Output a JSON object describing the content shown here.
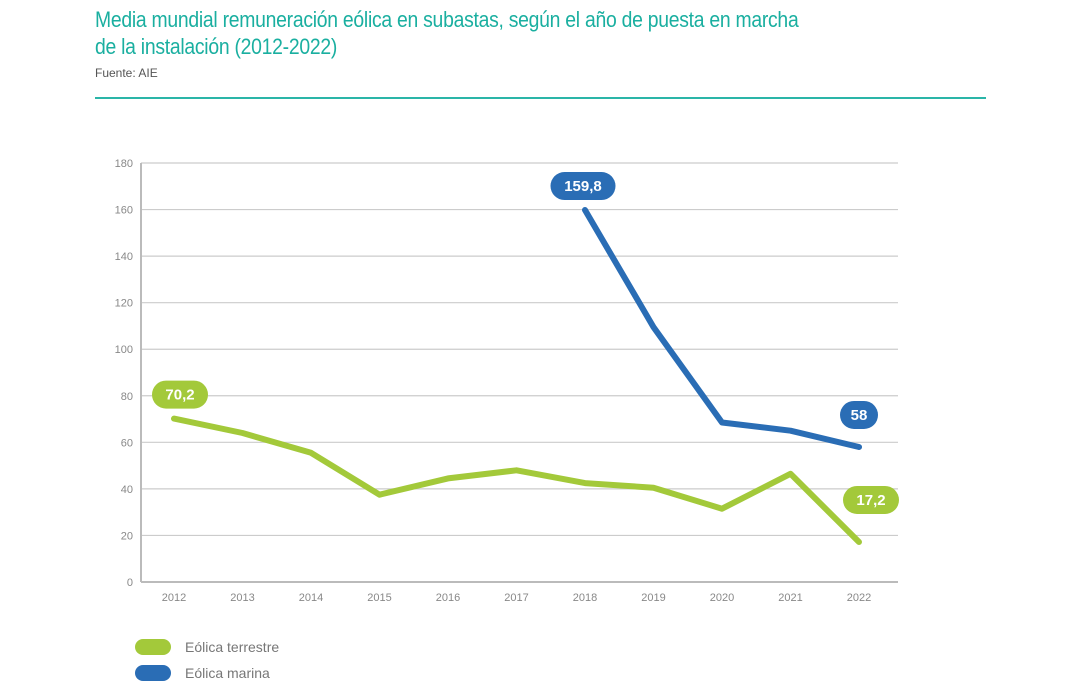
{
  "header": {
    "title": "Media mundial remuneración eólica en subastas, según el año de puesta en marcha de la instalación (2012-2022)",
    "source": "Fuente: AIE"
  },
  "colors": {
    "accent": "#1aafa0",
    "terrestre": "#a3c93a",
    "marina": "#2a6db5",
    "grid": "#cccccc"
  },
  "chart_data": {
    "type": "line",
    "title": "Media mundial remuneración eólica en subastas, según el año de puesta en marcha de la instalación (2012-2022)",
    "xlabel": "",
    "ylabel": "",
    "x": [
      "2012",
      "2013",
      "2014",
      "2015",
      "2016",
      "2017",
      "2018",
      "2019",
      "2020",
      "2021",
      "2022"
    ],
    "ylim": [
      0,
      180
    ],
    "yticks": [
      "0",
      "20",
      "40",
      "60",
      "80",
      "100",
      "120",
      "140",
      "160",
      "180"
    ],
    "grid": true,
    "legend_position": "bottom-left",
    "series": [
      {
        "name": "Eólica terrestre",
        "color": "#a3c93a",
        "values": [
          70.2,
          64,
          55.5,
          37.5,
          44.5,
          48,
          42.5,
          40.5,
          31.5,
          46.5,
          17.2
        ]
      },
      {
        "name": "Eólica marina",
        "color": "#2a6db5",
        "values": [
          null,
          null,
          null,
          null,
          null,
          null,
          159.8,
          109.5,
          68.5,
          65,
          58
        ]
      }
    ],
    "annotations": [
      {
        "series": 0,
        "x": "2012",
        "text": "70,2"
      },
      {
        "series": 0,
        "x": "2022",
        "text": "17,2"
      },
      {
        "series": 1,
        "x": "2018",
        "text": "159,8"
      },
      {
        "series": 1,
        "x": "2022",
        "text": "58"
      }
    ]
  }
}
